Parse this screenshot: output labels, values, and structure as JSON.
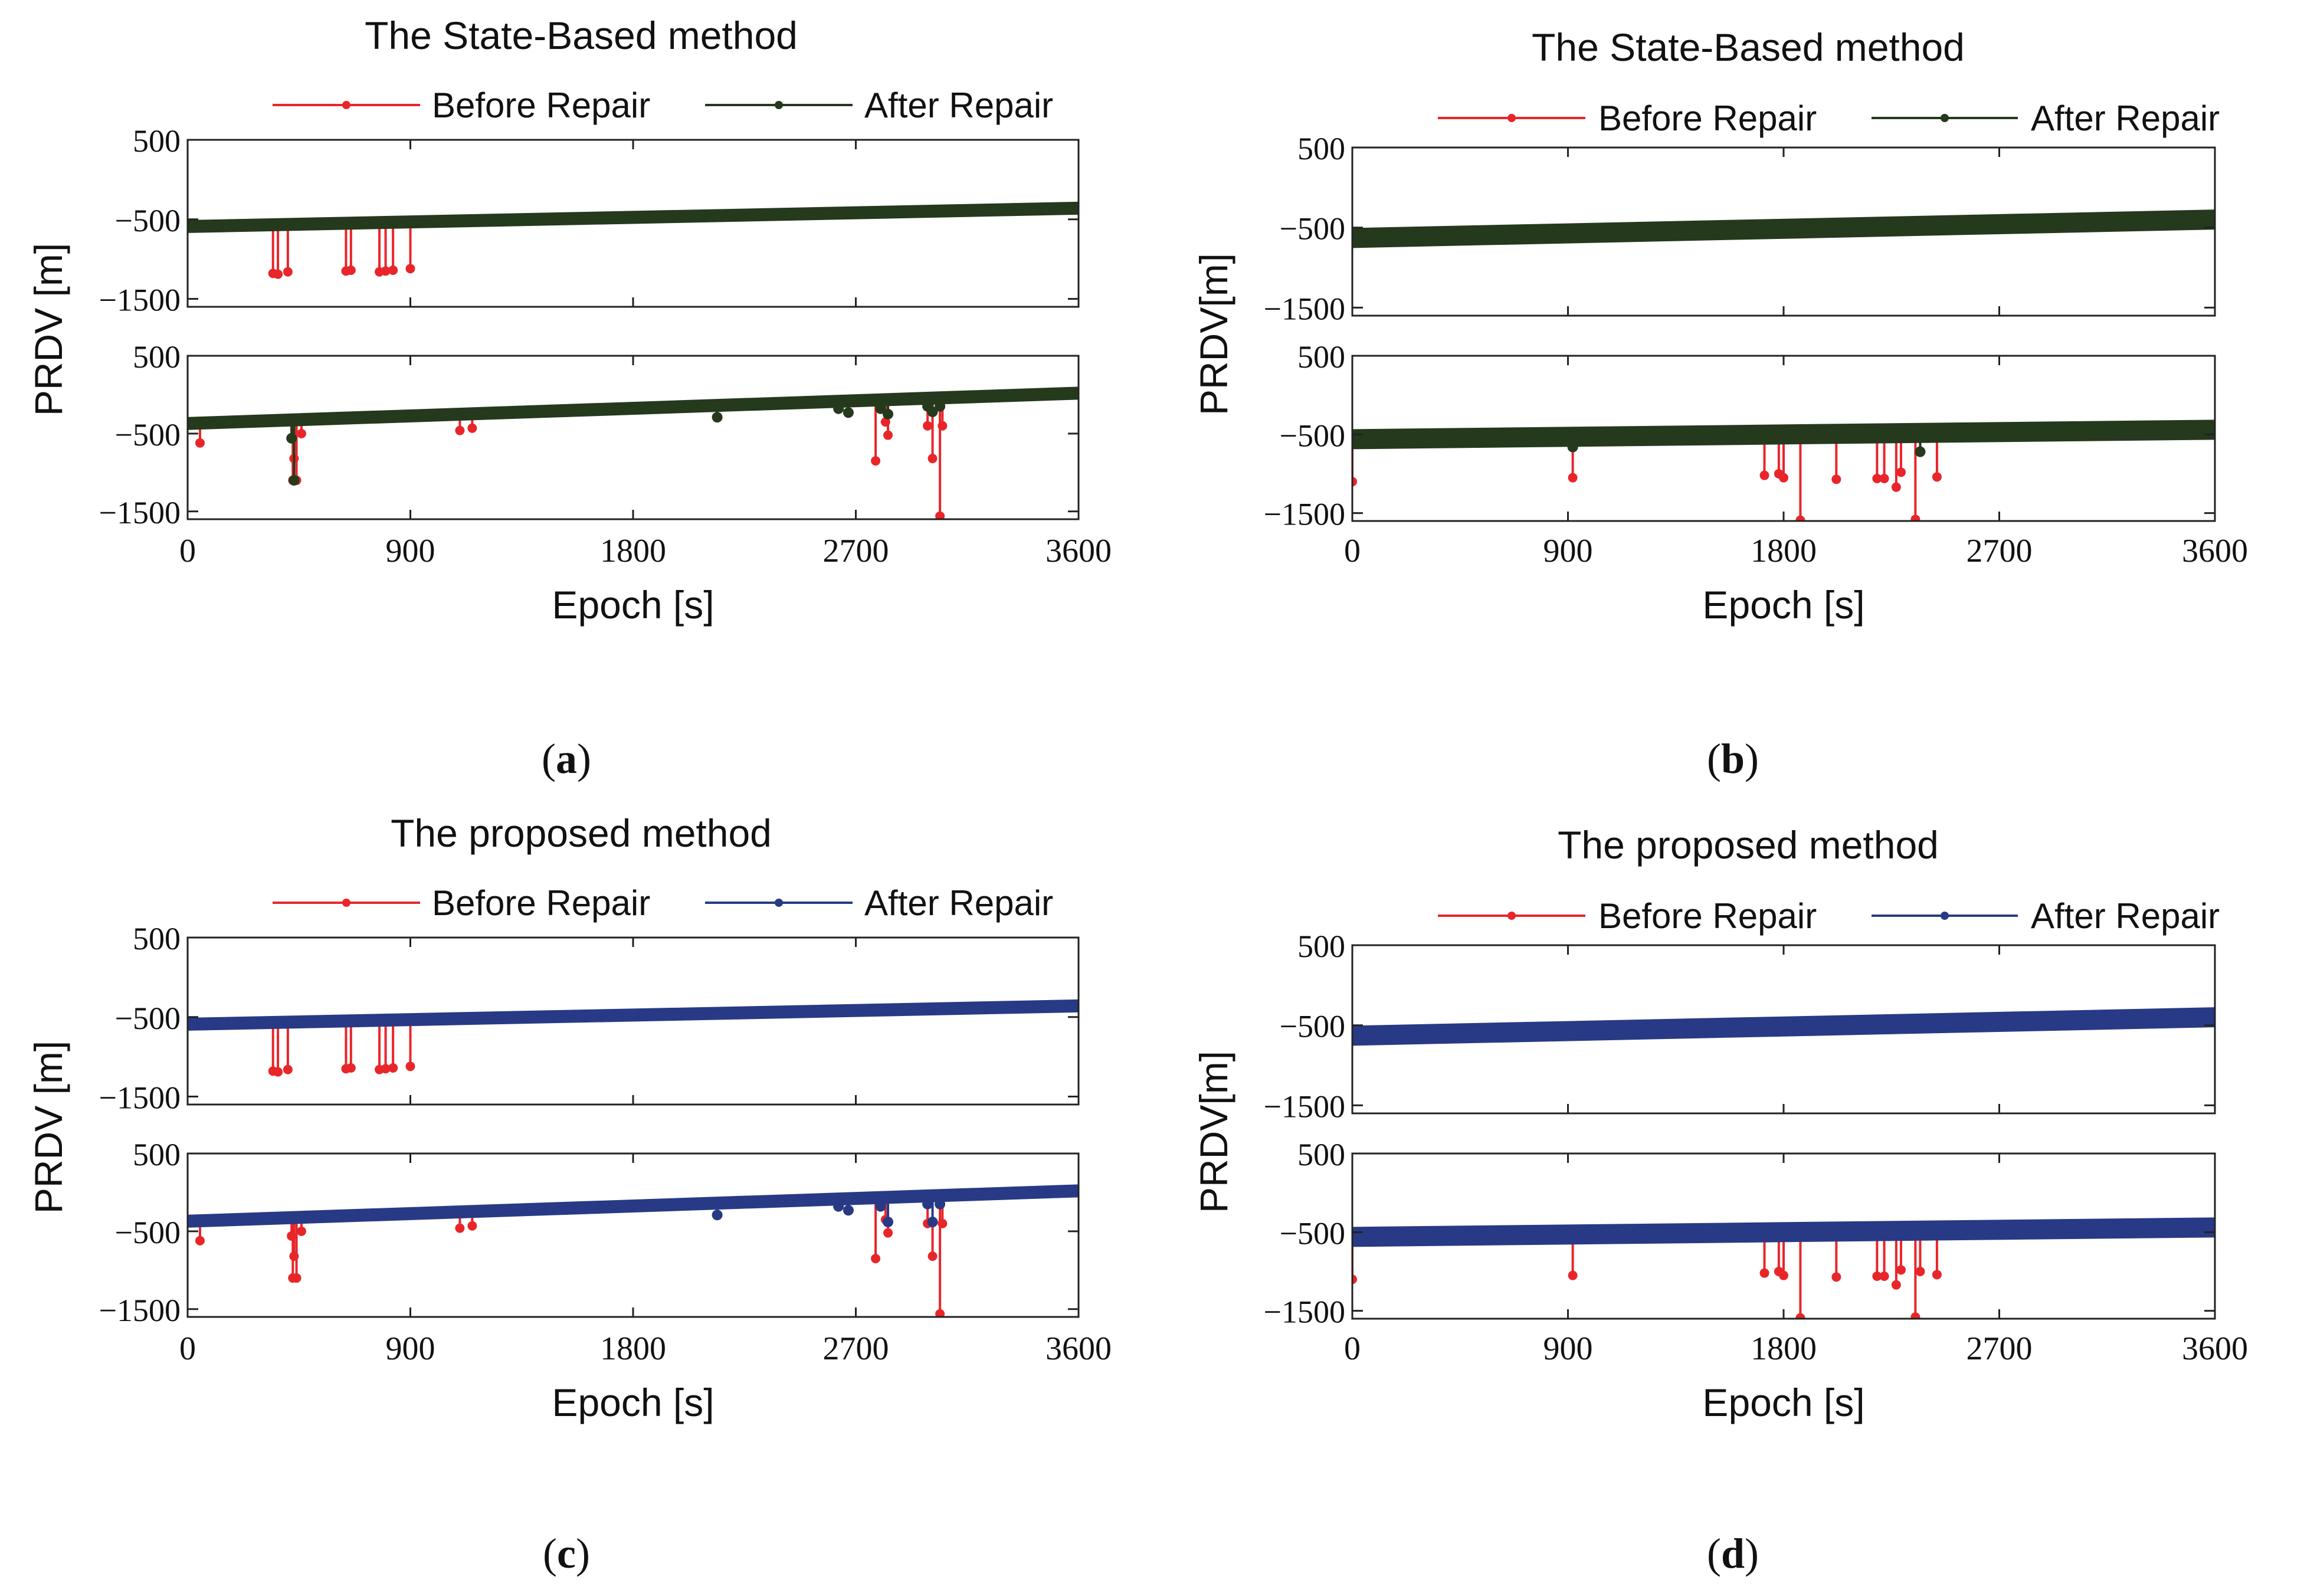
{
  "colors": {
    "before": "#e8262a",
    "after_state": "#25391d",
    "after_proposed": "#283a85",
    "axis": "#222222"
  },
  "panels": [
    {
      "id": "a",
      "caption": "a",
      "title": "The State-Based method",
      "legend": [
        "Before Repair",
        "After Repair"
      ],
      "after_color": "after_state",
      "ylabel": "PRDV [m]",
      "xlabel": "Epoch [s]",
      "style": "thin"
    },
    {
      "id": "b",
      "caption": "b",
      "title": "The State-Based method",
      "legend": [
        "Before Repair",
        "After Repair"
      ],
      "after_color": "after_state",
      "ylabel": "PRDV[m]",
      "xlabel": "Epoch [s]",
      "style": "thick"
    },
    {
      "id": "c",
      "caption": "c",
      "title": "The proposed method",
      "legend": [
        "Before Repair",
        "After Repair"
      ],
      "after_color": "after_proposed",
      "ylabel": "PRDV [m]",
      "xlabel": "Epoch [s]",
      "style": "thin"
    },
    {
      "id": "d",
      "caption": "d",
      "title": "The proposed method",
      "legend": [
        "Before Repair",
        "After Repair"
      ],
      "after_color": "after_proposed",
      "ylabel": "PRDV[m]",
      "xlabel": "Epoch [s]",
      "style": "thick"
    }
  ],
  "chart_data": [
    {
      "panel": "a",
      "type": "line",
      "title": "The State-Based method",
      "xlabel": "Epoch [s]",
      "ylabel": "PRDV [m]",
      "xlim": [
        0,
        3600
      ],
      "xticks": [
        0,
        900,
        1800,
        2700,
        3600
      ],
      "subplots": [
        {
          "ylim": [
            -1600,
            500
          ],
          "yticks": [
            500,
            -500,
            -1500
          ],
          "after_line": [
            [
              0,
              -590
            ],
            [
              3600,
              -360
            ]
          ],
          "before_spikes": [
            [
              345,
              -1180
            ],
            [
              365,
              -1190
            ],
            [
              405,
              -1160
            ],
            [
              640,
              -1150
            ],
            [
              660,
              -1140
            ],
            [
              775,
              -1160
            ],
            [
              800,
              -1150
            ],
            [
              830,
              -1140
            ],
            [
              900,
              -1120
            ]
          ],
          "after_outliers": [],
          "series": [
            {
              "name": "Before Repair"
            },
            {
              "name": "After Repair"
            }
          ]
        },
        {
          "ylim": [
            -1600,
            500
          ],
          "yticks": [
            500,
            -500,
            -1500
          ],
          "after_line": [
            [
              0,
              -370
            ],
            [
              3600,
              20
            ]
          ],
          "before_spikes": [
            [
              50,
              -620
            ],
            [
              420,
              -560
            ],
            [
              425,
              -1100
            ],
            [
              430,
              -820
            ],
            [
              440,
              -1100
            ],
            [
              460,
              -500
            ],
            [
              1100,
              -460
            ],
            [
              1150,
              -430
            ],
            [
              2780,
              -850
            ],
            [
              2820,
              -350
            ],
            [
              2830,
              -520
            ],
            [
              2990,
              -400
            ],
            [
              3010,
              -820
            ],
            [
              3040,
              -1560
            ],
            [
              3050,
              -400
            ]
          ],
          "after_outliers": [
            [
              420,
              -560
            ],
            [
              430,
              -1100
            ],
            [
              2140,
              -290
            ],
            [
              2630,
              -180
            ],
            [
              2670,
              -230
            ],
            [
              2800,
              -180
            ],
            [
              2830,
              -250
            ],
            [
              2990,
              -150
            ],
            [
              3010,
              -220
            ],
            [
              3040,
              -150
            ]
          ],
          "series": [
            {
              "name": "Before Repair"
            },
            {
              "name": "After Repair"
            }
          ]
        }
      ]
    },
    {
      "panel": "b",
      "type": "line",
      "title": "The State-Based method",
      "xlabel": "Epoch [s]",
      "ylabel": "PRDV[m]",
      "xlim": [
        0,
        3600
      ],
      "xticks": [
        0,
        900,
        1800,
        2700,
        3600
      ],
      "subplots": [
        {
          "ylim": [
            -1600,
            500
          ],
          "yticks": [
            500,
            -500,
            -1500
          ],
          "after_line": [
            [
              0,
              -630
            ],
            [
              3600,
              -400
            ]
          ],
          "before_spikes": [],
          "after_outliers": [],
          "series": [
            {
              "name": "Before Repair"
            },
            {
              "name": "After Repair"
            }
          ]
        },
        {
          "ylim": [
            -1600,
            500
          ],
          "yticks": [
            500,
            -500,
            -1500
          ],
          "after_line": [
            [
              0,
              -560
            ],
            [
              3600,
              -440
            ]
          ],
          "before_spikes": [
            [
              0,
              -1100
            ],
            [
              920,
              -1050
            ],
            [
              1720,
              -1020
            ],
            [
              1780,
              -1000
            ],
            [
              1800,
              -1050
            ],
            [
              1870,
              -1590
            ],
            [
              2020,
              -1070
            ],
            [
              2190,
              -1060
            ],
            [
              2220,
              -1060
            ],
            [
              2270,
              -1170
            ],
            [
              2290,
              -980
            ],
            [
              2350,
              -1580
            ],
            [
              2370,
              -710
            ],
            [
              2440,
              -1040
            ]
          ],
          "after_outliers": [
            [
              920,
              -660
            ],
            [
              2370,
              -720
            ]
          ],
          "series": [
            {
              "name": "Before Repair"
            },
            {
              "name": "After Repair"
            }
          ]
        }
      ]
    },
    {
      "panel": "c",
      "type": "line",
      "title": "The proposed method",
      "xlabel": "Epoch [s]",
      "ylabel": "PRDV [m]",
      "xlim": [
        0,
        3600
      ],
      "xticks": [
        0,
        900,
        1800,
        2700,
        3600
      ],
      "subplots": [
        {
          "ylim": [
            -1600,
            500
          ],
          "yticks": [
            500,
            -500,
            -1500
          ],
          "after_line": [
            [
              0,
              -590
            ],
            [
              3600,
              -360
            ]
          ],
          "before_spikes": [
            [
              345,
              -1180
            ],
            [
              365,
              -1190
            ],
            [
              405,
              -1160
            ],
            [
              640,
              -1150
            ],
            [
              660,
              -1140
            ],
            [
              775,
              -1160
            ],
            [
              800,
              -1150
            ],
            [
              830,
              -1140
            ],
            [
              900,
              -1120
            ]
          ],
          "after_outliers": [],
          "series": [
            {
              "name": "Before Repair"
            },
            {
              "name": "After Repair"
            }
          ]
        },
        {
          "ylim": [
            -1600,
            500
          ],
          "yticks": [
            500,
            -500,
            -1500
          ],
          "after_line": [
            [
              0,
              -370
            ],
            [
              3600,
              20
            ]
          ],
          "before_spikes": [
            [
              50,
              -620
            ],
            [
              420,
              -560
            ],
            [
              425,
              -1100
            ],
            [
              430,
              -820
            ],
            [
              440,
              -1100
            ],
            [
              460,
              -500
            ],
            [
              1100,
              -460
            ],
            [
              1150,
              -430
            ],
            [
              2780,
              -850
            ],
            [
              2820,
              -350
            ],
            [
              2830,
              -520
            ],
            [
              2990,
              -400
            ],
            [
              3010,
              -820
            ],
            [
              3040,
              -1560
            ],
            [
              3050,
              -400
            ]
          ],
          "after_outliers": [
            [
              2140,
              -290
            ],
            [
              2630,
              -180
            ],
            [
              2670,
              -230
            ],
            [
              2800,
              -180
            ],
            [
              2830,
              -380
            ],
            [
              2990,
              -150
            ],
            [
              3010,
              -380
            ],
            [
              3040,
              -150
            ]
          ],
          "series": [
            {
              "name": "Before Repair"
            },
            {
              "name": "After Repair"
            }
          ]
        }
      ]
    },
    {
      "panel": "d",
      "type": "line",
      "title": "The proposed method",
      "xlabel": "Epoch [s]",
      "ylabel": "PRDV[m]",
      "xlim": [
        0,
        3600
      ],
      "xticks": [
        0,
        900,
        1800,
        2700,
        3600
      ],
      "subplots": [
        {
          "ylim": [
            -1600,
            500
          ],
          "yticks": [
            500,
            -500,
            -1500
          ],
          "after_line": [
            [
              0,
              -630
            ],
            [
              3600,
              -400
            ]
          ],
          "before_spikes": [],
          "after_outliers": [],
          "series": [
            {
              "name": "Before Repair"
            },
            {
              "name": "After Repair"
            }
          ]
        },
        {
          "ylim": [
            -1600,
            500
          ],
          "yticks": [
            500,
            -500,
            -1500
          ],
          "after_line": [
            [
              0,
              -560
            ],
            [
              3600,
              -440
            ]
          ],
          "before_spikes": [
            [
              0,
              -1100
            ],
            [
              920,
              -1050
            ],
            [
              1720,
              -1020
            ],
            [
              1780,
              -1000
            ],
            [
              1800,
              -1050
            ],
            [
              1870,
              -1590
            ],
            [
              2020,
              -1070
            ],
            [
              2190,
              -1060
            ],
            [
              2220,
              -1060
            ],
            [
              2270,
              -1170
            ],
            [
              2290,
              -980
            ],
            [
              2350,
              -1580
            ],
            [
              2370,
              -1000
            ],
            [
              2440,
              -1040
            ]
          ],
          "after_outliers": [],
          "series": [
            {
              "name": "Before Repair"
            },
            {
              "name": "After Repair"
            }
          ]
        }
      ]
    }
  ]
}
